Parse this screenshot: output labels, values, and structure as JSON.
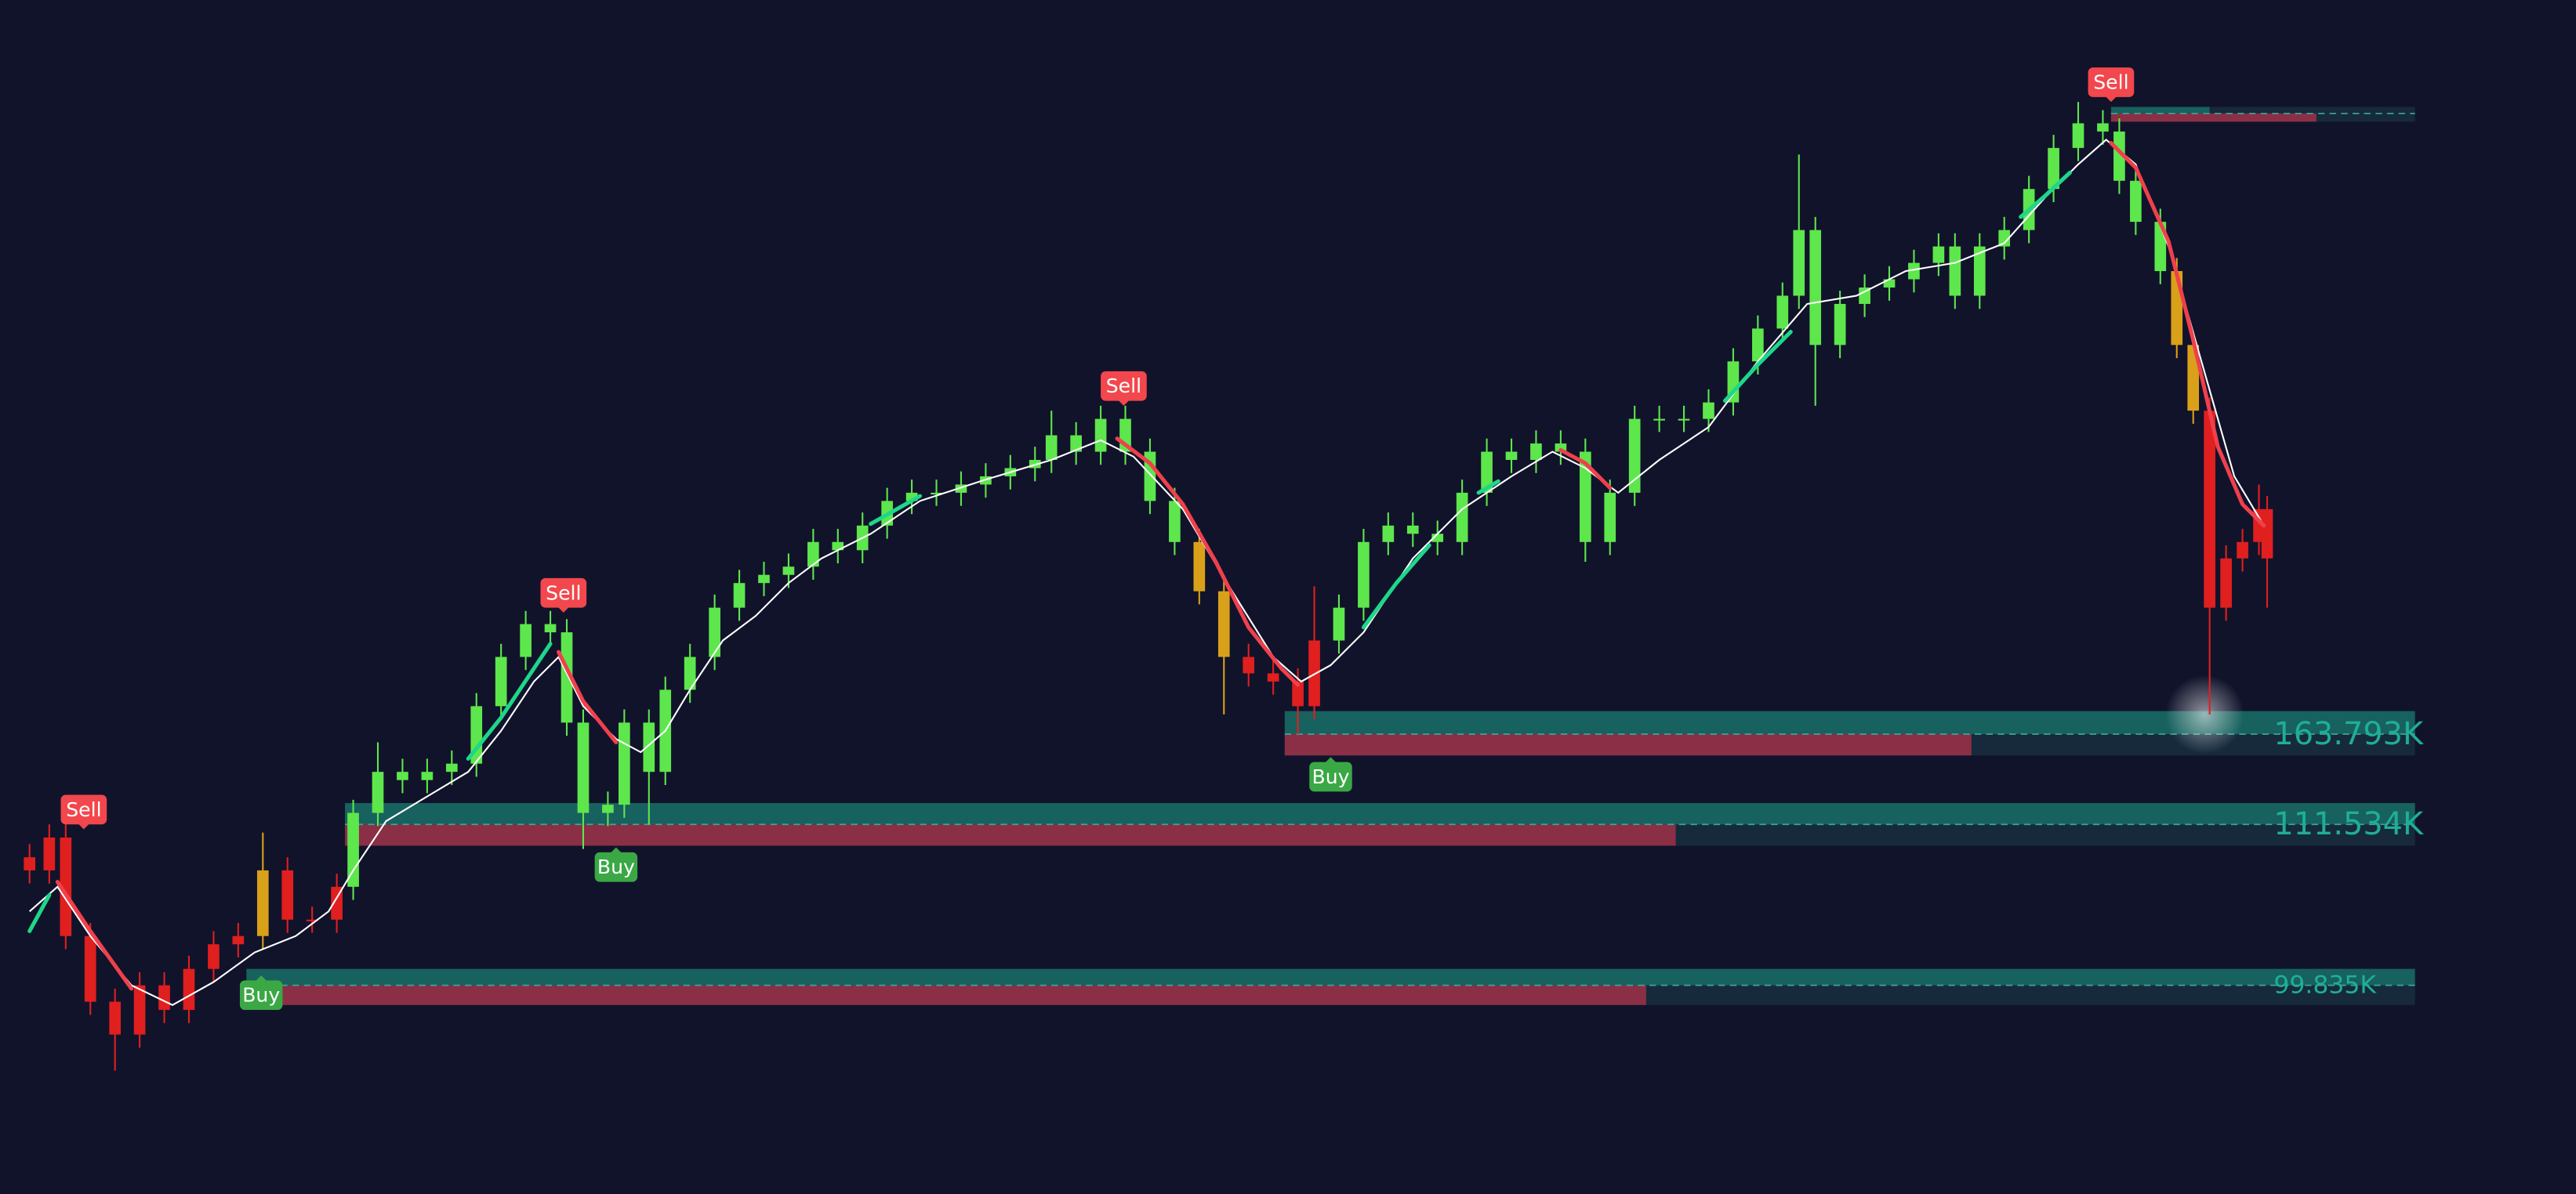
{
  "chart_data": {
    "type": "candlestick",
    "background": "#11132b",
    "xlim": [
      0,
      1568
    ],
    "ylim": [
      0,
      727
    ],
    "x": [
      18,
      30,
      40,
      55,
      70,
      85,
      100,
      115,
      130,
      145,
      160,
      175,
      190,
      205,
      215,
      230,
      245,
      260,
      275,
      290,
      305,
      320,
      335,
      345,
      355,
      370,
      380,
      395,
      405,
      420,
      435,
      450,
      465,
      480,
      495,
      510,
      525,
      540,
      555,
      570,
      585,
      600,
      615,
      630,
      640,
      655,
      670,
      685,
      700,
      715,
      730,
      745,
      760,
      775,
      790,
      800,
      815,
      830,
      845,
      860,
      875,
      890,
      905,
      920,
      935,
      950,
      965,
      980,
      995,
      1010,
      1025,
      1040,
      1055,
      1070,
      1085,
      1095,
      1105,
      1120,
      1135,
      1150,
      1165,
      1180,
      1190,
      1205,
      1220,
      1235,
      1250,
      1265,
      1280,
      1290,
      1300,
      1315,
      1325,
      1335,
      1345,
      1355,
      1365,
      1375,
      1380
    ],
    "open": [
      205,
      197,
      217,
      157,
      117,
      97,
      127,
      112,
      137,
      152,
      157,
      197,
      167,
      167,
      187,
      232,
      257,
      252,
      257,
      262,
      297,
      327,
      347,
      342,
      287,
      232,
      237,
      287,
      257,
      307,
      327,
      357,
      372,
      377,
      382,
      397,
      392,
      407,
      422,
      427,
      427,
      432,
      437,
      442,
      447,
      462,
      452,
      472,
      452,
      422,
      397,
      367,
      327,
      317,
      312,
      297,
      337,
      357,
      397,
      407,
      402,
      397,
      427,
      452,
      447,
      457,
      452,
      397,
      427,
      472,
      472,
      472,
      482,
      507,
      527,
      547,
      587,
      517,
      542,
      552,
      557,
      567,
      577,
      547,
      577,
      587,
      612,
      637,
      652,
      647,
      617,
      592,
      562,
      517,
      477,
      357,
      387,
      397,
      417
    ],
    "high": [
      213,
      225,
      225,
      165,
      125,
      135,
      135,
      145,
      160,
      165,
      220,
      205,
      175,
      195,
      240,
      275,
      265,
      265,
      270,
      305,
      335,
      355,
      355,
      350,
      295,
      245,
      295,
      295,
      315,
      335,
      365,
      380,
      385,
      390,
      405,
      405,
      415,
      430,
      435,
      435,
      440,
      445,
      450,
      455,
      477,
      470,
      480,
      480,
      460,
      430,
      405,
      375,
      335,
      325,
      320,
      370,
      365,
      405,
      415,
      415,
      410,
      435,
      460,
      460,
      465,
      465,
      460,
      435,
      480,
      480,
      480,
      490,
      515,
      535,
      555,
      633,
      595,
      550,
      560,
      565,
      575,
      585,
      585,
      585,
      595,
      620,
      645,
      665,
      660,
      655,
      625,
      600,
      570,
      525,
      485,
      395,
      405,
      432,
      425
    ],
    "low": [
      189,
      189,
      149,
      109,
      75,
      89,
      104,
      104,
      129,
      144,
      149,
      159,
      159,
      159,
      179,
      224,
      244,
      244,
      249,
      254,
      289,
      319,
      334,
      279,
      210,
      224,
      229,
      225,
      249,
      299,
      319,
      349,
      364,
      369,
      374,
      384,
      384,
      399,
      414,
      419,
      419,
      424,
      429,
      434,
      439,
      444,
      444,
      444,
      414,
      389,
      359,
      292,
      309,
      304,
      280,
      289,
      329,
      349,
      389,
      394,
      389,
      389,
      419,
      439,
      439,
      444,
      385,
      389,
      419,
      464,
      464,
      464,
      474,
      499,
      519,
      539,
      480,
      509,
      534,
      544,
      549,
      559,
      539,
      539,
      569,
      579,
      604,
      629,
      639,
      609,
      584,
      554,
      509,
      469,
      292,
      349,
      379,
      389,
      357
    ],
    "close": [
      197,
      217,
      157,
      117,
      97,
      127,
      112,
      137,
      152,
      157,
      197,
      167,
      167,
      187,
      232,
      257,
      252,
      257,
      262,
      297,
      327,
      347,
      342,
      287,
      232,
      237,
      287,
      257,
      307,
      327,
      357,
      372,
      377,
      382,
      397,
      392,
      407,
      422,
      427,
      427,
      432,
      437,
      442,
      447,
      462,
      452,
      472,
      452,
      422,
      397,
      367,
      327,
      317,
      312,
      297,
      337,
      357,
      397,
      407,
      402,
      397,
      427,
      452,
      447,
      457,
      452,
      397,
      427,
      472,
      472,
      472,
      482,
      507,
      527,
      547,
      587,
      517,
      542,
      552,
      557,
      567,
      577,
      547,
      577,
      587,
      612,
      637,
      652,
      647,
      617,
      592,
      562,
      517,
      477,
      357,
      387,
      397,
      417,
      387
    ],
    "trend": [
      "down",
      "down",
      "down",
      "down",
      "down",
      "down",
      "down",
      "down",
      "down",
      "down",
      "turn",
      "down",
      "down",
      "down",
      "up",
      "up",
      "up",
      "up",
      "up",
      "up",
      "up",
      "up",
      "up",
      "up",
      "up",
      "up",
      "up",
      "up",
      "up",
      "up",
      "up",
      "up",
      "up",
      "up",
      "up",
      "up",
      "up",
      "up",
      "up",
      "up",
      "up",
      "up",
      "up",
      "up",
      "up",
      "up",
      "up",
      "up",
      "up",
      "up",
      "turn",
      "turn",
      "down",
      "down",
      "down",
      "down",
      "up",
      "up",
      "up",
      "up",
      "up",
      "up",
      "up",
      "up",
      "up",
      "up",
      "up",
      "up",
      "up",
      "up",
      "up",
      "up",
      "up",
      "up",
      "up",
      "up",
      "up",
      "up",
      "up",
      "up",
      "up",
      "up",
      "up",
      "up",
      "up",
      "up",
      "up",
      "up",
      "up",
      "up",
      "up",
      "up",
      "turn",
      "turn",
      "down",
      "down",
      "down",
      "down",
      "down"
    ],
    "trend_colors": {
      "up": "#5ee64d",
      "down": "#e01f1f",
      "turn": "#d9a01a"
    },
    "ma": {
      "color": "#ffffff",
      "x": [
        18,
        35,
        55,
        80,
        105,
        130,
        155,
        180,
        200,
        215,
        235,
        260,
        285,
        305,
        325,
        340,
        355,
        375,
        390,
        405,
        420,
        440,
        460,
        480,
        500,
        530,
        560,
        600,
        640,
        670,
        690,
        720,
        750,
        775,
        792,
        810,
        830,
        860,
        890,
        920,
        945,
        965,
        985,
        1010,
        1040,
        1070,
        1100,
        1130,
        1160,
        1190,
        1220,
        1245,
        1265,
        1282,
        1300,
        1320,
        1340,
        1360,
        1378
      ],
      "values": [
        172,
        187,
        157,
        127,
        115,
        129,
        147,
        157,
        172,
        197,
        227,
        242,
        257,
        282,
        312,
        327,
        297,
        277,
        269,
        282,
        307,
        337,
        352,
        372,
        387,
        402,
        422,
        435,
        447,
        459,
        449,
        417,
        367,
        327,
        312,
        322,
        342,
        387,
        417,
        437,
        452,
        442,
        427,
        447,
        467,
        507,
        542,
        547,
        562,
        567,
        579,
        607,
        627,
        642,
        627,
        577,
        507,
        437,
        407
      ]
    },
    "trend_lines": [
      {
        "color": "#1fd68a",
        "x": [
          18,
          30
        ],
        "values": [
          160,
          182
        ]
      },
      {
        "color": "#f0404c",
        "x": [
          35,
          55,
          80
        ],
        "values": [
          190,
          160,
          125
        ]
      },
      {
        "color": "#1fd68a",
        "x": [
          285,
          305,
          325,
          335
        ],
        "values": [
          265,
          290,
          320,
          335
        ]
      },
      {
        "color": "#f0404c",
        "x": [
          340,
          355,
          375
        ],
        "values": [
          330,
          300,
          275
        ]
      },
      {
        "color": "#1fd68a",
        "x": [
          530,
          560
        ],
        "values": [
          408,
          425
        ]
      },
      {
        "color": "#f0404c",
        "x": [
          680,
          700,
          720,
          740,
          760,
          780,
          790
        ],
        "values": [
          460,
          445,
          420,
          385,
          345,
          320,
          310
        ]
      },
      {
        "color": "#1fd68a",
        "x": [
          830,
          850,
          870
        ],
        "values": [
          345,
          372,
          395
        ]
      },
      {
        "color": "#1fd68a",
        "x": [
          900,
          912
        ],
        "values": [
          427,
          434
        ]
      },
      {
        "color": "#f0404c",
        "x": [
          950,
          965,
          980
        ],
        "values": [
          453,
          445,
          430
        ]
      },
      {
        "color": "#1fd68a",
        "x": [
          1050,
          1070,
          1090
        ],
        "values": [
          483,
          505,
          525
        ]
      },
      {
        "color": "#1fd68a",
        "x": [
          1230,
          1245,
          1260
        ],
        "values": [
          595,
          608,
          622
        ]
      },
      {
        "color": "#f0404c",
        "x": [
          1285,
          1300,
          1320,
          1335,
          1350,
          1365,
          1378
        ],
        "values": [
          640,
          625,
          580,
          520,
          455,
          420,
          407
        ]
      }
    ],
    "signals": [
      {
        "text": "Sell",
        "x": 51,
        "value": 224,
        "color": "#f2474d"
      },
      {
        "text": "Sell",
        "x": 343,
        "value": 356,
        "color": "#f2474d"
      },
      {
        "text": "Sell",
        "x": 684,
        "value": 482,
        "color": "#f2474d"
      },
      {
        "text": "Sell",
        "x": 1285,
        "value": 667,
        "color": "#f2474d"
      },
      {
        "text": "Buy",
        "x": 159,
        "value": 131,
        "color": "#3aa845"
      },
      {
        "text": "Buy",
        "x": 375,
        "value": 209,
        "color": "#3aa845"
      },
      {
        "text": "Buy",
        "x": 810,
        "value": 264,
        "color": "#3aa845"
      }
    ],
    "levels": [
      {
        "label": "163.793K",
        "top": 294,
        "mid": 280,
        "bottom": 267,
        "start": 782,
        "teal_end": 1470,
        "red_end": 1200,
        "end": 1470
      },
      {
        "label": "111.534K",
        "top": 238,
        "mid": 225,
        "bottom": 212,
        "start": 210,
        "teal_end": 1470,
        "red_end": 1020,
        "end": 1470
      },
      {
        "label": "99.835K",
        "top": 137,
        "mid": 127,
        "bottom": 115,
        "start": 150,
        "teal_end": 1470,
        "red_end": 1002,
        "end": 1470
      },
      {
        "top": 662,
        "mid": 658,
        "bottom": 653,
        "start": 1285,
        "teal_end": 1345,
        "red_end": 1410,
        "end": 1470
      }
    ],
    "level_colors": {
      "teal": "#17615e",
      "red": "#8a2f45",
      "rest": "#162a3c",
      "dash": "#3fa39a"
    }
  }
}
